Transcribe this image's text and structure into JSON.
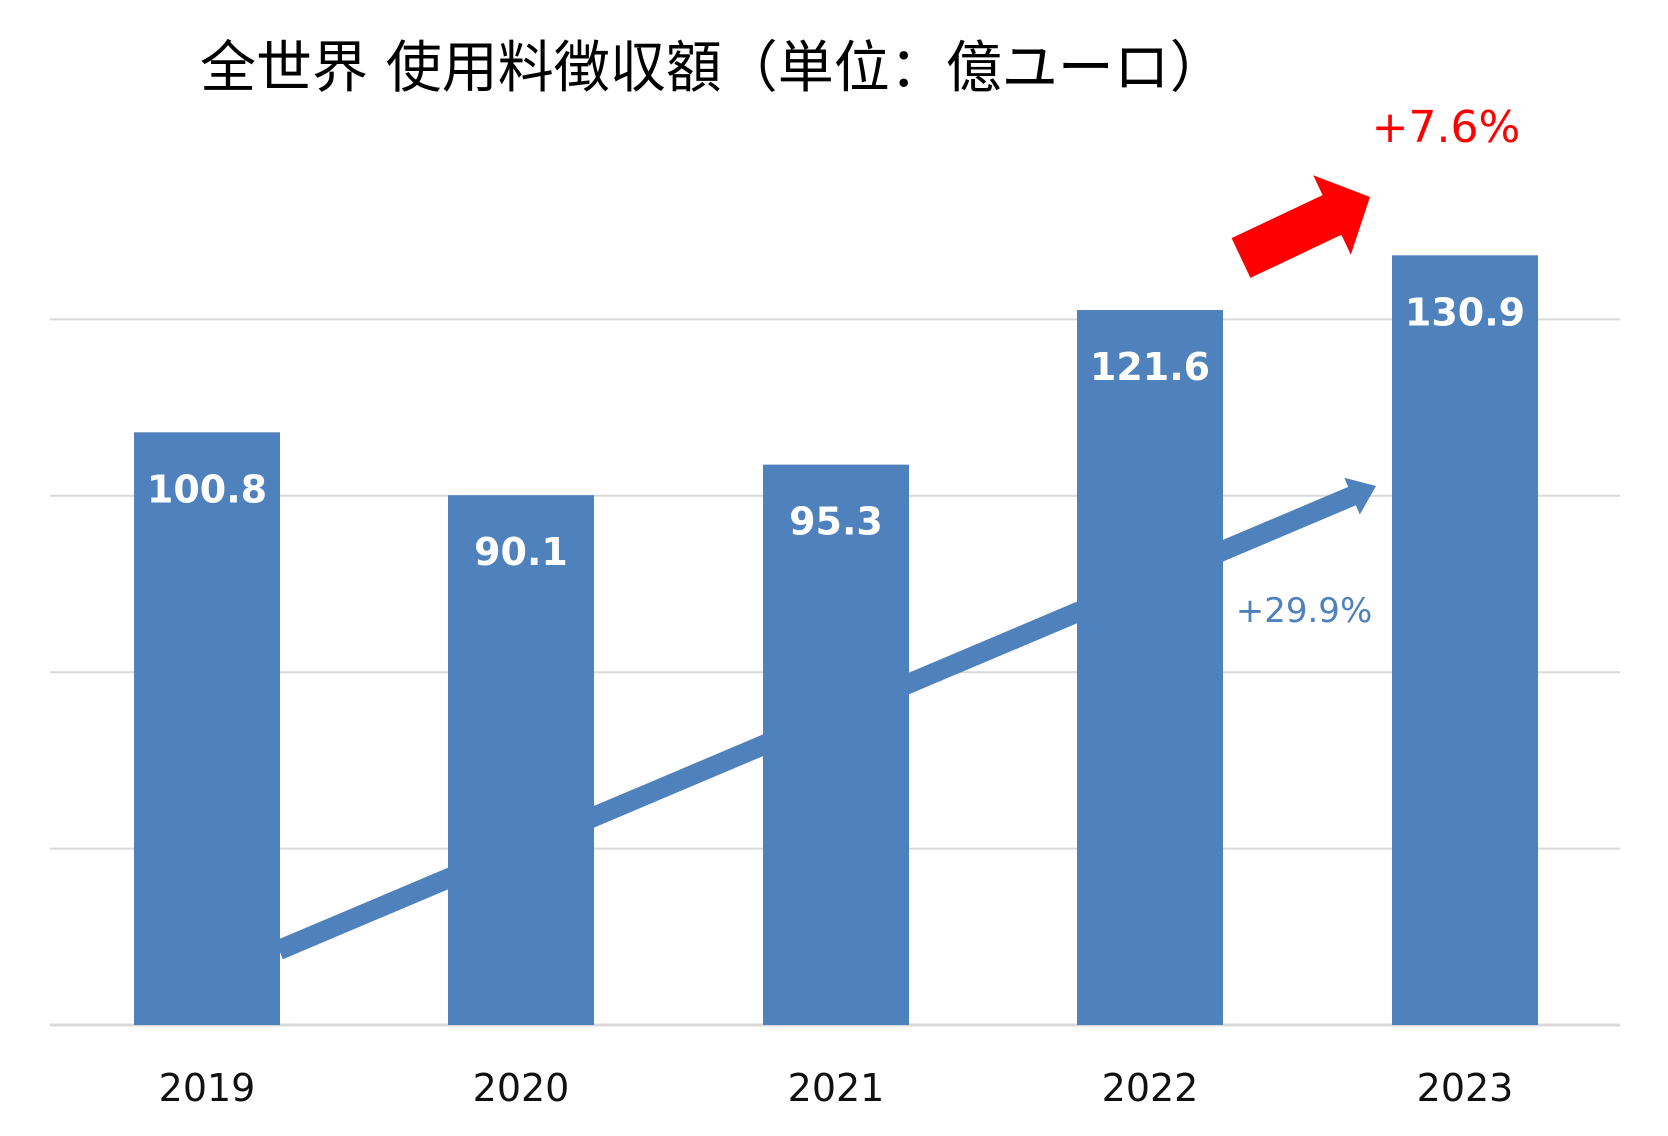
{
  "chart_data": {
    "type": "bar",
    "title": "全世界 使用料徴収額（単位：億ユーロ）",
    "categories": [
      "2019",
      "2020",
      "2021",
      "2022",
      "2023"
    ],
    "values": [
      100.8,
      90.1,
      95.3,
      121.6,
      130.9
    ],
    "value_labels": [
      "100.8",
      "90.1",
      "95.3",
      "121.6",
      "130.9"
    ],
    "ylim": [
      0,
      160
    ],
    "grid": true,
    "annotations": {
      "total_growth": "+29.9%",
      "last_year_growth": "+7.6%"
    }
  },
  "colors": {
    "bar": "#4F81BD",
    "grid": "#D9D9D9",
    "highlight": "#FF0000",
    "title": "#000000",
    "bar_label": "#FFFFFF"
  }
}
